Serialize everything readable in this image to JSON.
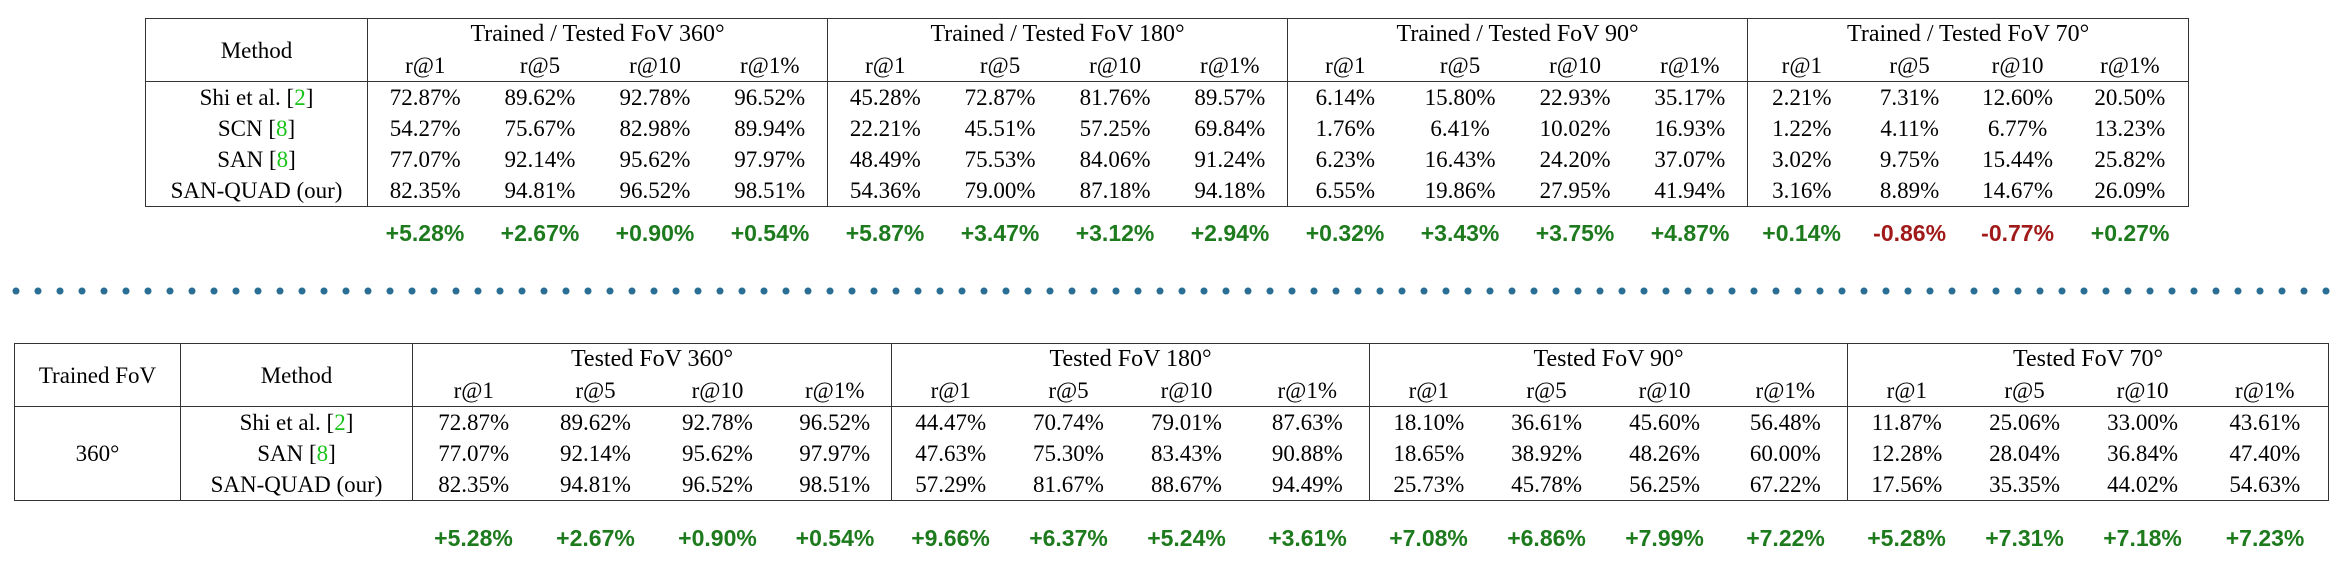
{
  "colors": {
    "positive": "#1d7a1d",
    "negative": "#a11a1a",
    "separator": "#2a6f93",
    "citation": "#18c418"
  },
  "table1": {
    "method_header": "Method",
    "groups": [
      "Trained / Tested FoV 360°",
      "Trained / Tested FoV 180°",
      "Trained / Tested FoV 90°",
      "Trained / Tested FoV 70°"
    ],
    "metrics": [
      "r@1",
      "r@5",
      "r@10",
      "r@1%"
    ],
    "rows": [
      {
        "method": "Shi et al.",
        "cite": "2",
        "values": [
          "72.87%",
          "89.62%",
          "92.78%",
          "96.52%",
          "45.28%",
          "72.87%",
          "81.76%",
          "89.57%",
          "6.14%",
          "15.80%",
          "22.93%",
          "35.17%",
          "2.21%",
          "7.31%",
          "12.60%",
          "20.50%"
        ],
        "bold": []
      },
      {
        "method": "SCN",
        "cite": "8",
        "values": [
          "54.27%",
          "75.67%",
          "82.98%",
          "89.94%",
          "22.21%",
          "45.51%",
          "57.25%",
          "69.84%",
          "1.76%",
          "6.41%",
          "10.02%",
          "16.93%",
          "1.22%",
          "4.11%",
          "6.77%",
          "13.23%"
        ],
        "bold": []
      },
      {
        "method": "SAN",
        "cite": "8",
        "values": [
          "77.07%",
          "92.14%",
          "95.62%",
          "97.97%",
          "48.49%",
          "75.53%",
          "84.06%",
          "91.24%",
          "6.23%",
          "16.43%",
          "24.20%",
          "37.07%",
          "3.02%",
          "9.75%",
          "15.44%",
          "25.82%"
        ],
        "bold": [
          13,
          14
        ]
      },
      {
        "method": "SAN-QUAD (our)",
        "cite": "",
        "values": [
          "82.35%",
          "94.81%",
          "96.52%",
          "98.51%",
          "54.36%",
          "79.00%",
          "87.18%",
          "94.18%",
          "6.55%",
          "19.86%",
          "27.95%",
          "41.94%",
          "3.16%",
          "8.89%",
          "14.67%",
          "26.09%"
        ],
        "bold": [
          0,
          1,
          2,
          3,
          4,
          5,
          6,
          7,
          8,
          9,
          10,
          11,
          12,
          15
        ]
      }
    ],
    "deltas": [
      "+5.28%",
      "+2.67%",
      "+0.90%",
      "+0.54%",
      "+5.87%",
      "+3.47%",
      "+3.12%",
      "+2.94%",
      "+0.32%",
      "+3.43%",
      "+3.75%",
      "+4.87%",
      "+0.14%",
      "-0.86%",
      "-0.77%",
      "+0.27%"
    ]
  },
  "table2": {
    "trained_header": "Trained FoV",
    "method_header": "Method",
    "trained_value": "360°",
    "groups": [
      "Tested FoV 360°",
      "Tested FoV 180°",
      "Tested FoV 90°",
      "Tested FoV 70°"
    ],
    "metrics": [
      "r@1",
      "r@5",
      "r@10",
      "r@1%"
    ],
    "rows": [
      {
        "method": "Shi et al.",
        "cite": "2",
        "values": [
          "72.87%",
          "89.62%",
          "92.78%",
          "96.52%",
          "44.47%",
          "70.74%",
          "79.01%",
          "87.63%",
          "18.10%",
          "36.61%",
          "45.60%",
          "56.48%",
          "11.87%",
          "25.06%",
          "33.00%",
          "43.61%"
        ],
        "bold": []
      },
      {
        "method": "SAN",
        "cite": "8",
        "values": [
          "77.07%",
          "92.14%",
          "95.62%",
          "97.97%",
          "47.63%",
          "75.30%",
          "83.43%",
          "90.88%",
          "18.65%",
          "38.92%",
          "48.26%",
          "60.00%",
          "12.28%",
          "28.04%",
          "36.84%",
          "47.40%"
        ],
        "bold": []
      },
      {
        "method": "SAN-QUAD (our)",
        "cite": "",
        "values": [
          "82.35%",
          "94.81%",
          "96.52%",
          "98.51%",
          "57.29%",
          "81.67%",
          "88.67%",
          "94.49%",
          "25.73%",
          "45.78%",
          "56.25%",
          "67.22%",
          "17.56%",
          "35.35%",
          "44.02%",
          "54.63%"
        ],
        "bold": [
          0,
          1,
          2,
          3,
          4,
          5,
          6,
          7,
          8,
          9,
          10,
          11,
          12,
          13,
          14,
          15
        ]
      }
    ],
    "deltas": [
      "+5.28%",
      "+2.67%",
      "+0.90%",
      "+0.54%",
      "+9.66%",
      "+6.37%",
      "+5.24%",
      "+3.61%",
      "+7.08%",
      "+6.86%",
      "+7.99%",
      "+7.22%",
      "+5.28%",
      "+7.31%",
      "+7.18%",
      "+7.23%"
    ]
  }
}
